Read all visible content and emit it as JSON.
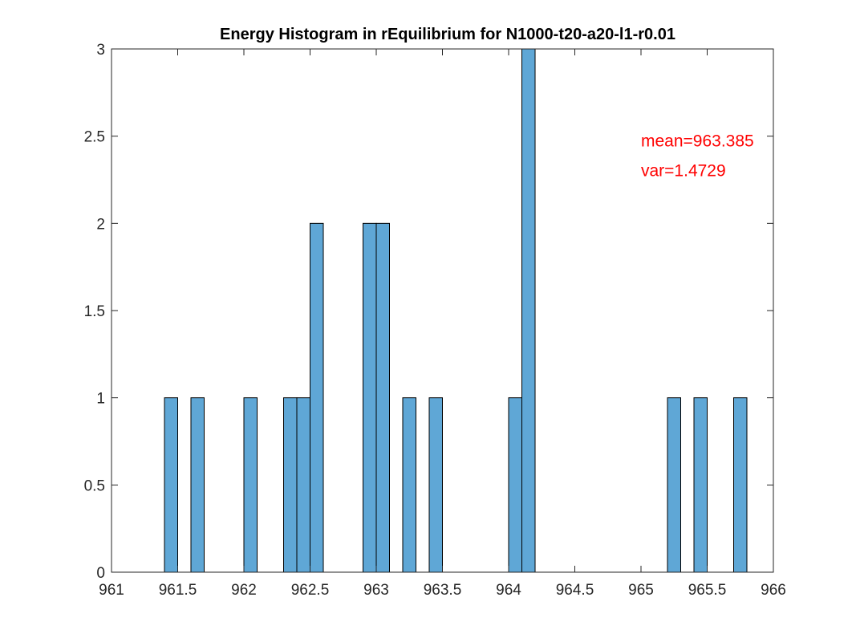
{
  "chart_data": {
    "type": "bar",
    "title": "Energy Histogram in rEquilibrium for N1000-t20-a20-l1-r0.01",
    "xlabel": "",
    "ylabel": "",
    "xlim": [
      961,
      966
    ],
    "ylim": [
      0,
      3
    ],
    "xticks": [
      "961",
      "961.5",
      "962",
      "962.5",
      "963",
      "963.5",
      "964",
      "964.5",
      "965",
      "965.5",
      "966"
    ],
    "yticks": [
      "0",
      "0.5",
      "1",
      "1.5",
      "2",
      "2.5",
      "3"
    ],
    "bin_width": 0.1,
    "bins": [
      {
        "start": 961.4,
        "end": 961.5,
        "count": 1
      },
      {
        "start": 961.6,
        "end": 961.7,
        "count": 1
      },
      {
        "start": 962.0,
        "end": 962.1,
        "count": 1
      },
      {
        "start": 962.3,
        "end": 962.4,
        "count": 1
      },
      {
        "start": 962.4,
        "end": 962.5,
        "count": 1
      },
      {
        "start": 962.5,
        "end": 962.6,
        "count": 2
      },
      {
        "start": 962.9,
        "end": 963.0,
        "count": 2
      },
      {
        "start": 963.0,
        "end": 963.1,
        "count": 2
      },
      {
        "start": 963.2,
        "end": 963.3,
        "count": 1
      },
      {
        "start": 963.4,
        "end": 963.5,
        "count": 1
      },
      {
        "start": 964.0,
        "end": 964.1,
        "count": 1
      },
      {
        "start": 964.1,
        "end": 964.2,
        "count": 3
      },
      {
        "start": 965.2,
        "end": 965.3,
        "count": 1
      },
      {
        "start": 965.4,
        "end": 965.5,
        "count": 1
      },
      {
        "start": 965.7,
        "end": 965.8,
        "count": 1
      }
    ],
    "annotations": [
      "mean=963.385",
      "var=1.4729"
    ],
    "grid": false,
    "box": true,
    "colors": {
      "bar_fill": "#5fa7d6",
      "bar_edge": "#000000",
      "axes": "#262626",
      "annotation": "#ff0000"
    }
  }
}
